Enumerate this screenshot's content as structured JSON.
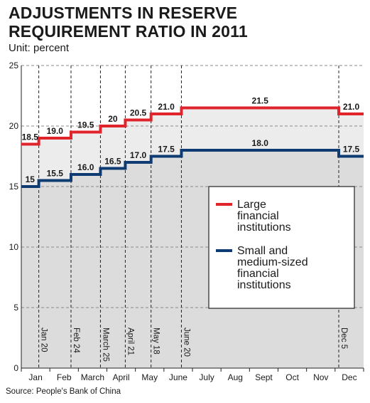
{
  "title_lines": [
    "ADJUSTMENTS IN RESERVE",
    "REQUIREMENT RATIO IN 2011"
  ],
  "subtitle": "Unit: percent",
  "source": "Source: People's Bank of China",
  "chart_data": {
    "type": "line",
    "step": true,
    "x_months": [
      "Jan",
      "Feb",
      "March",
      "April",
      "May",
      "June",
      "July",
      "Aug",
      "Sept",
      "Oct",
      "Nov",
      "Dec"
    ],
    "ylim": [
      0,
      25
    ],
    "y_ticks": [
      "0",
      "5",
      "10",
      "15",
      "20",
      "25"
    ],
    "grid": true,
    "adjustment_dates": [
      "Jan 20",
      "Feb 24",
      "March 25",
      "April 21",
      "May 18",
      "June 20",
      "Dec 5"
    ],
    "legend_position": "center-right",
    "colors": {
      "large": "#e0242c",
      "small": "#0d3b72",
      "upper_fill": "#ececec",
      "lower_fill": "#dcdcdc"
    },
    "series": [
      {
        "name": "Large financial institutions",
        "legend_lines": [
          "Large",
          "financial",
          "institutions"
        ],
        "values": [
          18.5,
          19.0,
          19.5,
          20.0,
          20.5,
          21.0,
          21.5,
          21.0
        ],
        "labels": [
          "18.5",
          "19.0",
          "19.5",
          "20",
          "20.5",
          "21.0",
          "21.5",
          "21.0"
        ]
      },
      {
        "name": "Small and medium-sized financial institutions",
        "legend_lines": [
          "Small and",
          "medium-sized",
          "financial",
          "institutions"
        ],
        "values": [
          15,
          15.5,
          16.0,
          16.5,
          17.0,
          17.5,
          18.0,
          17.5
        ],
        "labels": [
          "15",
          "15.5",
          "16.0",
          "16.5",
          "17.0",
          "17.5",
          "18.0",
          "17.5"
        ]
      }
    ]
  }
}
